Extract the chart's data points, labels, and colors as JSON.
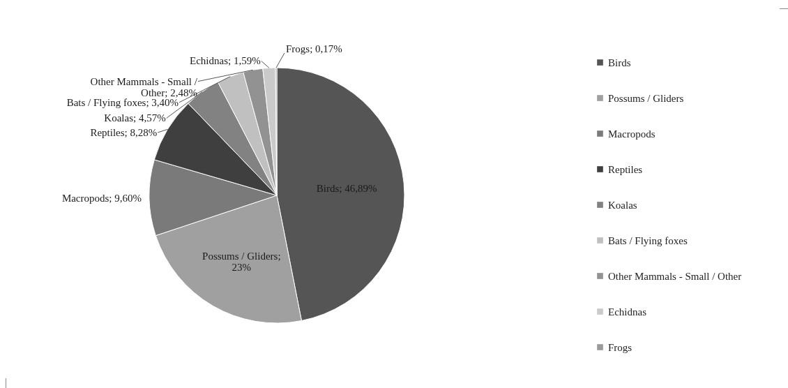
{
  "chart_data": {
    "type": "pie",
    "categories": [
      "Birds",
      "Possums / Gliders",
      "Macropods",
      "Reptiles",
      "Koalas",
      "Bats / Flying foxes",
      "Other Mammals - Small / Other",
      "Echidnas",
      "Frogs"
    ],
    "values": [
      46.89,
      23,
      9.6,
      8.28,
      4.57,
      3.4,
      2.48,
      1.59,
      0.17
    ],
    "value_labels": [
      "Birds; 46,89%",
      "Possums / Gliders; 23%",
      "Macropods; 9,60%",
      "Reptiles; 8,28%",
      "Koalas; 4,57%",
      "Bats / Flying foxes; 3,40%",
      "Other Mammals - Small / Other; 2,48%",
      "Echidnas; 1,59%",
      "Frogs; 0,17%"
    ],
    "colors": [
      "#555555",
      "#a0a0a0",
      "#7a7a7a",
      "#3f3f3f",
      "#828282",
      "#c0c0c0",
      "#929292",
      "#cacaca",
      "#9a9a9a"
    ],
    "legend": "right"
  }
}
